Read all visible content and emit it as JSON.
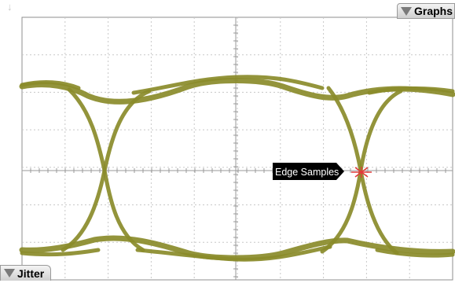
{
  "graphs_tab": {
    "label": "Graphs",
    "icon": "triangle-down-icon"
  },
  "jitter_tab": {
    "label": "Jitter",
    "icon": "triangle-down-icon"
  },
  "callout": {
    "label": "Edge Samples",
    "icon": "crosshair-marker-icon"
  },
  "colors": {
    "trace": "#8a8b2a",
    "grid": "#c8c8c8",
    "axis": "#9a9a9a",
    "callout_bg": "#000000",
    "callout_text": "#ffffff",
    "marker": "#e23b3b"
  }
}
